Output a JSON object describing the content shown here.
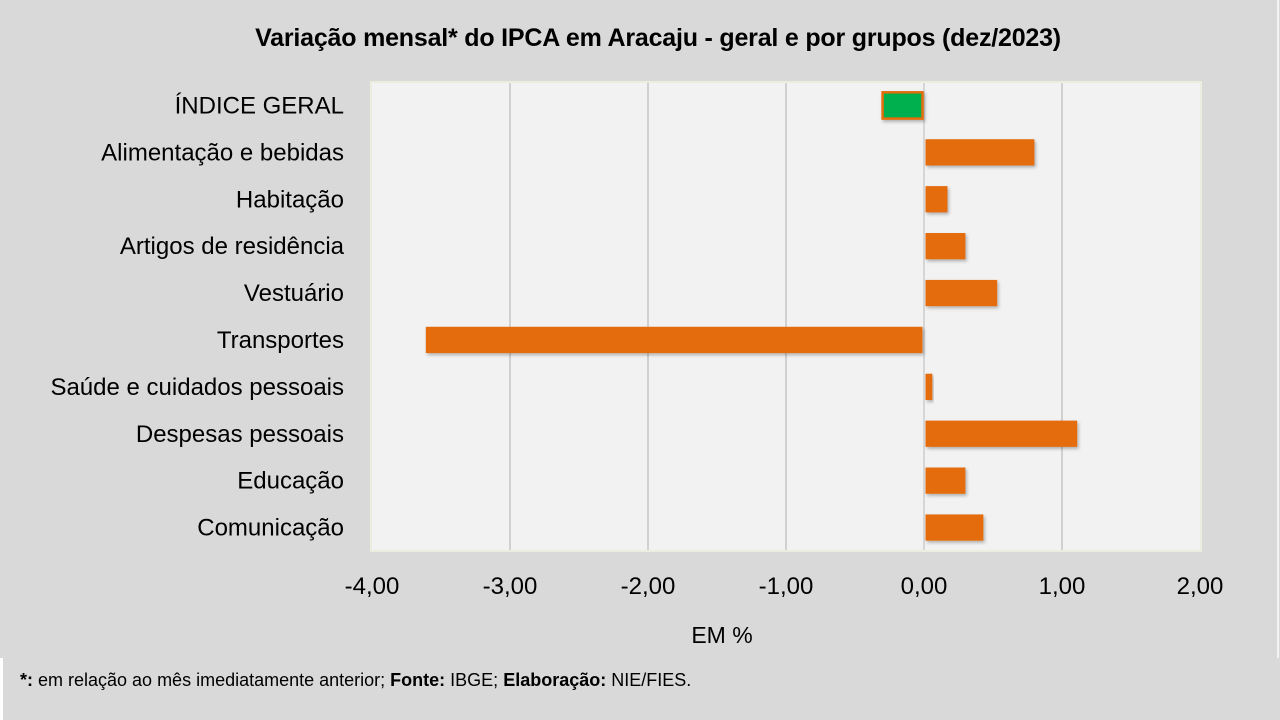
{
  "chart_data": {
    "type": "bar",
    "orientation": "horizontal",
    "title": "Variação  mensal*  do IPCA em Aracaju  - geral e por grupos  (dez/2023)",
    "xlabel": "EM %",
    "ylabel": "",
    "xlim": [
      -4,
      2
    ],
    "xticks": [
      -4,
      -3,
      -2,
      -1,
      0,
      1,
      2
    ],
    "xtick_labels": [
      "-4,00",
      "-3,00",
      "-2,00",
      "-1,00",
      "0,00",
      "1,00",
      "2,00"
    ],
    "grid": "vertical",
    "legend": "none",
    "categories": [
      "ÍNDICE GERAL",
      "Alimentação e bebidas",
      "Habitação",
      "Artigos de residência",
      "Vestuário",
      "Transportes",
      "Saúde e cuidados pessoais",
      "Despesas pessoais",
      "Educação",
      "Comunicação"
    ],
    "values": [
      -0.3,
      0.8,
      0.17,
      0.3,
      0.53,
      -3.61,
      0.06,
      1.11,
      0.3,
      0.43
    ],
    "bar_colors": [
      "#00B050",
      "#E46C0A",
      "#E46C0A",
      "#E46C0A",
      "#E46C0A",
      "#E46C0A",
      "#E46C0A",
      "#E46C0A",
      "#E46C0A",
      "#E46C0A"
    ],
    "highlight_outline": "#E46C0A"
  },
  "footer": {
    "note_marker": "*:",
    "note_text": " em relação ao mês imediatamente  anterior; ",
    "source_label": "Fonte:",
    "source_value": " IBGE; ",
    "credit_label": "Elaboração:",
    "credit_value": " NIE/FIES."
  },
  "colors": {
    "background": "#D9D9D9",
    "plot_background": "#F2F2F2",
    "gridline": "#D0D0D0",
    "bar": "#E46C0A",
    "highlight_bar": "#00B050"
  }
}
